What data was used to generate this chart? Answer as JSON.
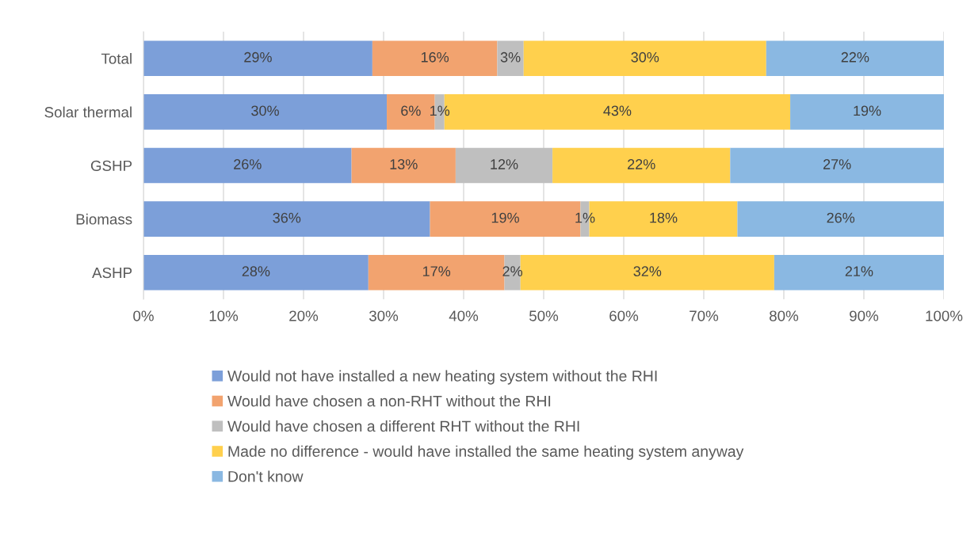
{
  "chart_data": {
    "type": "bar",
    "orientation": "horizontal",
    "stacked": true,
    "categories": [
      "Total",
      "Solar thermal",
      "GSHP",
      "Biomass",
      "ASHP"
    ],
    "series": [
      {
        "name": "Would not have installed a new heating system without the RHI",
        "color": "#7c9fd9",
        "values": [
          28.6,
          30.4,
          26.0,
          35.8,
          28.1
        ],
        "value_labels": [
          "29%",
          "30%",
          "26%",
          "36%",
          "28%"
        ]
      },
      {
        "name": "Would have chosen a non-RHT without the RHI",
        "color": "#f2a36f",
        "values": [
          15.6,
          6.0,
          13.0,
          18.8,
          17.0
        ],
        "value_labels": [
          "16%",
          "6%",
          "13%",
          "19%",
          "17%"
        ]
      },
      {
        "name": "Would have chosen a different RHT without the RHI",
        "color": "#bfbfbf",
        "values": [
          3.3,
          1.2,
          12.1,
          1.1,
          2.0
        ],
        "value_labels": [
          "3%",
          "1%",
          "12%",
          "1%",
          "2%"
        ]
      },
      {
        "name": "Made no difference - would have installed the same heating system anyway",
        "color": "#ffd04d",
        "values": [
          30.3,
          43.2,
          22.2,
          18.5,
          31.7
        ],
        "value_labels": [
          "30%",
          "43%",
          "22%",
          "18%",
          "32%"
        ]
      },
      {
        "name": "Don't know",
        "color": "#8ab8e2",
        "values": [
          22.2,
          19.2,
          26.7,
          25.8,
          21.2
        ],
        "value_labels": [
          "22%",
          "19%",
          "27%",
          "26%",
          "21%"
        ]
      }
    ],
    "xlim": [
      0,
      100
    ],
    "xticks": [
      {
        "value": 0,
        "label": "0%"
      },
      {
        "value": 10,
        "label": "10%"
      },
      {
        "value": 20,
        "label": "20%"
      },
      {
        "value": 30,
        "label": "30%"
      },
      {
        "value": 40,
        "label": "40%"
      },
      {
        "value": 50,
        "label": "50%"
      },
      {
        "value": 60,
        "label": "60%"
      },
      {
        "value": 70,
        "label": "70%"
      },
      {
        "value": 80,
        "label": "80%"
      },
      {
        "value": 90,
        "label": "90%"
      },
      {
        "value": 100,
        "label": "100%"
      }
    ],
    "grid": "x",
    "legend": "bottom"
  }
}
